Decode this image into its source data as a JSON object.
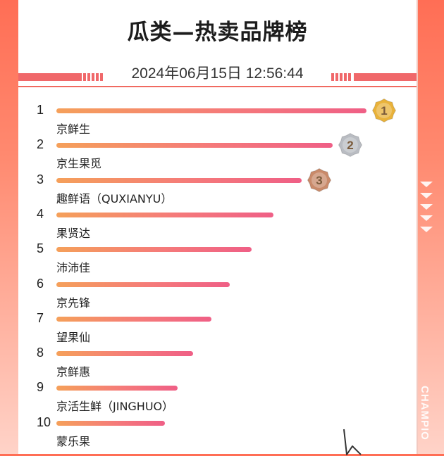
{
  "header": {
    "title": "瓜类—热卖品牌榜",
    "datetime": "2024年06月15日   12:56:44"
  },
  "side": {
    "vertical_text": "CHAMPIO"
  },
  "chart_data": {
    "type": "bar",
    "orientation": "horizontal",
    "title": "瓜类—热卖品牌榜",
    "ranks": [
      "1",
      "2",
      "3",
      "4",
      "5",
      "6",
      "7",
      "8",
      "9",
      "10"
    ],
    "categories": [
      "京鲜生",
      "京生果觅",
      "趣鲜语（QUXIANYU）",
      "果贤达",
      "沛沛佳",
      "京先锋",
      "望果仙",
      "京鲜惠",
      "京活生鲜（JINGHUO）",
      "蒙乐果"
    ],
    "values": [
      100,
      89,
      79,
      70,
      63,
      56,
      50,
      44,
      39,
      35
    ],
    "xlim": [
      0,
      100
    ],
    "medals": [
      {
        "rank": "1",
        "color": "#e9b23a"
      },
      {
        "rank": "2",
        "color": "#b9bcc2"
      },
      {
        "rank": "3",
        "color": "#c98a6a"
      }
    ]
  }
}
